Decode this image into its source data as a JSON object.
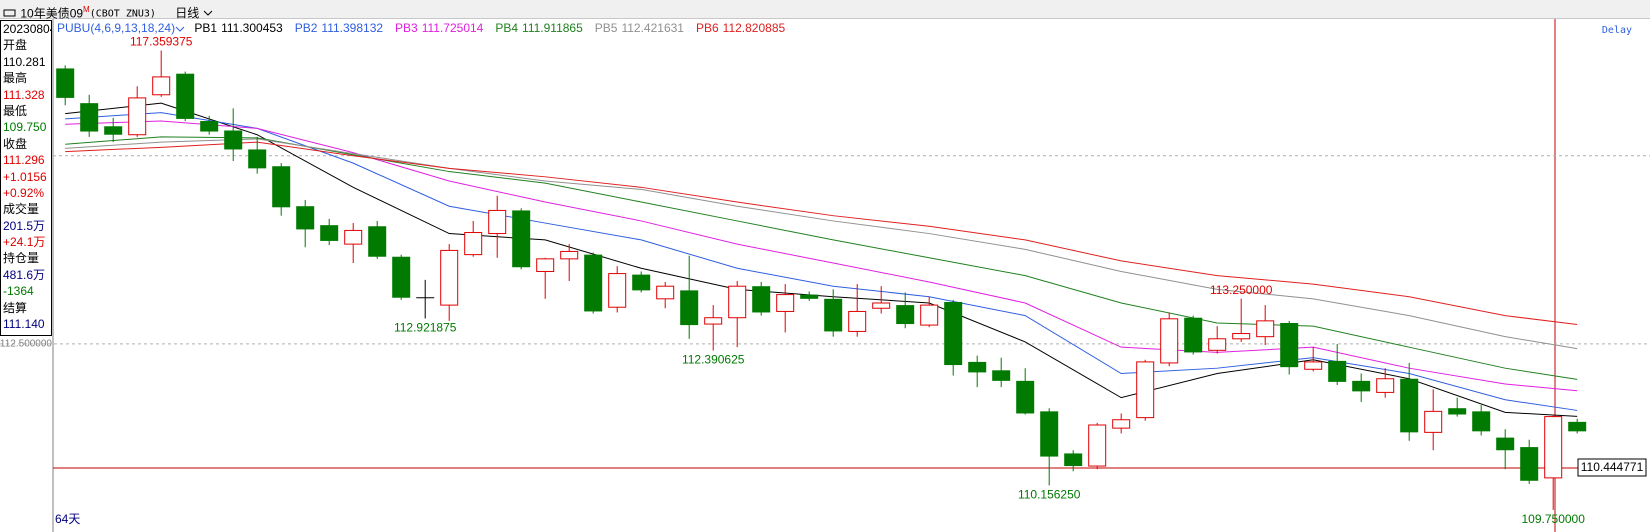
{
  "window": {
    "symbol": "10年美债09",
    "sup": "M",
    "code": "(CBOT ZNU3)",
    "period": "日线"
  },
  "info": [
    {
      "text": "20230804",
      "color": "#000000"
    },
    {
      "text": "开盘",
      "color": "#000000"
    },
    {
      "text": "110.281",
      "color": "#000000"
    },
    {
      "text": "最高",
      "color": "#000000"
    },
    {
      "text": "111.328",
      "color": "#e00000"
    },
    {
      "text": "最低",
      "color": "#000000"
    },
    {
      "text": "109.750",
      "color": "#007a00"
    },
    {
      "text": "收盘",
      "color": "#000000"
    },
    {
      "text": "111.296",
      "color": "#e00000"
    },
    {
      "text": "+1.0156",
      "color": "#e00000"
    },
    {
      "text": "+0.92%",
      "color": "#e00000"
    },
    {
      "text": "成交量",
      "color": "#000000"
    },
    {
      "text": "201.5万",
      "color": "#000080"
    },
    {
      "text": "+24.1万",
      "color": "#e00000"
    },
    {
      "text": "持仓量",
      "color": "#000000"
    },
    {
      "text": "481.6万",
      "color": "#000080"
    },
    {
      "text": "-1364",
      "color": "#007a00"
    },
    {
      "text": "结算",
      "color": "#000000"
    },
    {
      "text": "111.140",
      "color": "#000080"
    }
  ],
  "chart_data": {
    "type": "candlestick",
    "indicator": "PUBU(4,6,9,13,18,24)",
    "delay": "Delay",
    "days": "64天",
    "ylim": [
      109.484,
      117.882
    ],
    "yticks": [
      {
        "value": 112.5,
        "label": "112.500000"
      }
    ],
    "dashed_lines": [
      115.617
    ],
    "up_color": "#e00000",
    "down_color": "#007a00",
    "flat_color": "#000000",
    "price_line": {
      "value": 110.444771,
      "label": "110.444771",
      "color": "#c00000"
    },
    "candles": [
      {
        "open": 117.063,
        "high": 117.115,
        "low": 116.453,
        "close": 116.575
      },
      {
        "open": 116.488,
        "high": 116.627,
        "low": 115.93,
        "close": 116.018
      },
      {
        "open": 116.105,
        "high": 116.244,
        "low": 115.843,
        "close": 115.965
      },
      {
        "open": 115.965,
        "high": 116.767,
        "low": 115.93,
        "close": 116.575
      },
      {
        "open": 116.627,
        "high": 117.359375,
        "low": 116.592,
        "close": 116.923,
        "high_label": "117.359375"
      },
      {
        "open": 116.976,
        "high": 117.011,
        "low": 116.192,
        "close": 116.227
      },
      {
        "open": 116.192,
        "high": 116.279,
        "low": 115.965,
        "close": 116.018
      },
      {
        "open": 116.035,
        "high": 116.401,
        "low": 115.53,
        "close": 115.721
      },
      {
        "open": 115.721,
        "high": 115.93,
        "low": 115.321,
        "close": 115.408
      },
      {
        "open": 115.443,
        "high": 115.495,
        "low": 114.624,
        "close": 114.763
      },
      {
        "open": 114.781,
        "high": 114.885,
        "low": 114.101,
        "close": 114.397
      },
      {
        "open": 114.467,
        "high": 114.571,
        "low": 114.136,
        "close": 114.206
      },
      {
        "open": 114.153,
        "high": 114.502,
        "low": 113.84,
        "close": 114.38
      },
      {
        "open": 114.449,
        "high": 114.537,
        "low": 113.909,
        "close": 113.944
      },
      {
        "open": 113.944,
        "high": 113.979,
        "low": 113.23,
        "close": 113.265
      },
      {
        "open": 113.265,
        "high": 113.561,
        "low": 112.921875,
        "close": 113.265,
        "low_label": "112.921875"
      },
      {
        "open": 113.143,
        "high": 114.153,
        "low": 112.882,
        "close": 114.049
      },
      {
        "open": 113.979,
        "high": 114.537,
        "low": 113.944,
        "close": 114.345
      },
      {
        "open": 114.328,
        "high": 114.955,
        "low": 113.927,
        "close": 114.711
      },
      {
        "open": 114.711,
        "high": 114.746,
        "low": 113.735,
        "close": 113.77
      },
      {
        "open": 113.7,
        "high": 113.927,
        "low": 113.247,
        "close": 113.909
      },
      {
        "open": 113.909,
        "high": 114.153,
        "low": 113.543,
        "close": 114.032
      },
      {
        "open": 113.979,
        "high": 114.014,
        "low": 113.003,
        "close": 113.038
      },
      {
        "open": 113.108,
        "high": 113.788,
        "low": 113.021,
        "close": 113.665
      },
      {
        "open": 113.648,
        "high": 113.7,
        "low": 113.352,
        "close": 113.387
      },
      {
        "open": 113.247,
        "high": 113.526,
        "low": 113.091,
        "close": 113.456
      },
      {
        "open": 113.387,
        "high": 113.962,
        "low": 112.585,
        "close": 112.812
      },
      {
        "open": 112.829,
        "high": 113.143,
        "low": 112.390625,
        "close": 112.934,
        "low_label": "112.390625"
      },
      {
        "open": 112.934,
        "high": 113.543,
        "low": 112.446,
        "close": 113.456
      },
      {
        "open": 113.456,
        "high": 113.526,
        "low": 112.969,
        "close": 113.021
      },
      {
        "open": 113.038,
        "high": 113.491,
        "low": 112.69,
        "close": 113.317
      },
      {
        "open": 113.317,
        "high": 113.369,
        "low": 113.213,
        "close": 113.247
      },
      {
        "open": 113.247,
        "high": 113.404,
        "low": 112.62,
        "close": 112.707
      },
      {
        "open": 112.707,
        "high": 113.491,
        "low": 112.62,
        "close": 113.038
      },
      {
        "open": 113.091,
        "high": 113.456,
        "low": 113.003,
        "close": 113.178
      },
      {
        "open": 113.143,
        "high": 113.352,
        "low": 112.76,
        "close": 112.829
      },
      {
        "open": 112.812,
        "high": 113.282,
        "low": 112.777,
        "close": 113.143
      },
      {
        "open": 113.195,
        "high": 113.23,
        "low": 111.976,
        "close": 112.15
      },
      {
        "open": 112.202,
        "high": 112.307,
        "low": 111.784,
        "close": 112.028
      },
      {
        "open": 112.063,
        "high": 112.272,
        "low": 111.784,
        "close": 111.888
      },
      {
        "open": 111.888,
        "high": 112.098,
        "low": 111.331,
        "close": 111.348
      },
      {
        "open": 111.383,
        "high": 111.435,
        "low": 110.15625,
        "close": 110.634,
        "low_label": "110.156250"
      },
      {
        "open": 110.686,
        "high": 110.739,
        "low": 110.39,
        "close": 110.477
      },
      {
        "open": 110.477,
        "high": 111.192,
        "low": 110.425,
        "close": 111.157
      },
      {
        "open": 111.105,
        "high": 111.348,
        "low": 111.017,
        "close": 111.244
      },
      {
        "open": 111.279,
        "high": 112.237,
        "low": 111.227,
        "close": 112.202
      },
      {
        "open": 112.185,
        "high": 113.021,
        "low": 112.132,
        "close": 112.916
      },
      {
        "open": 112.934,
        "high": 112.969,
        "low": 112.324,
        "close": 112.359
      },
      {
        "open": 112.394,
        "high": 112.794,
        "low": 112.341,
        "close": 112.585
      },
      {
        "open": 112.585,
        "high": 113.25,
        "low": 112.533,
        "close": 112.672,
        "high_label": "113.250000"
      },
      {
        "open": 112.62,
        "high": 113.143,
        "low": 112.481,
        "close": 112.882
      },
      {
        "open": 112.847,
        "high": 112.882,
        "low": 111.993,
        "close": 112.115
      },
      {
        "open": 112.08,
        "high": 112.446,
        "low": 112.045,
        "close": 112.202
      },
      {
        "open": 112.219,
        "high": 112.498,
        "low": 111.819,
        "close": 111.871
      },
      {
        "open": 111.888,
        "high": 112.01,
        "low": 111.54,
        "close": 111.714
      },
      {
        "open": 111.697,
        "high": 112.098,
        "low": 111.61,
        "close": 111.923
      },
      {
        "open": 111.923,
        "high": 112.185,
        "low": 110.895,
        "close": 111.035
      },
      {
        "open": 111.035,
        "high": 111.749,
        "low": 110.739,
        "close": 111.383
      },
      {
        "open": 111.435,
        "high": 111.61,
        "low": 111.296,
        "close": 111.331
      },
      {
        "open": 111.383,
        "high": 111.488,
        "low": 110.983,
        "close": 111.052
      },
      {
        "open": 110.948,
        "high": 111.087,
        "low": 110.425,
        "close": 110.739
      },
      {
        "open": 110.791,
        "high": 110.913,
        "low": 110.181,
        "close": 110.233
      },
      {
        "open": 110.281,
        "high": 111.328,
        "low": 109.75,
        "close": 111.296,
        "low_label": "109.750000"
      },
      {
        "open": 111.209,
        "high": 111.261,
        "low": 111.017,
        "close": 111.052
      }
    ],
    "series": [
      {
        "name": "PB1",
        "color": "#000000",
        "x": [
          0,
          4,
          8,
          12,
          16,
          20,
          24,
          28,
          32,
          36,
          40,
          44,
          48,
          52,
          56,
          60,
          63
        ],
        "values": [
          116.314,
          116.488,
          115.965,
          115.094,
          114.328,
          114.223,
          113.753,
          113.404,
          113.282,
          113.178,
          112.533,
          111.61,
          112.01,
          112.237,
          111.923,
          111.366,
          111.300453
        ]
      },
      {
        "name": "PB2",
        "color": "#2f5fe0",
        "x": [
          0,
          4,
          8,
          12,
          16,
          20,
          24,
          28,
          32,
          36,
          40,
          44,
          48,
          52,
          56,
          60,
          63
        ],
        "values": [
          116.227,
          116.331,
          116.07,
          115.495,
          114.781,
          114.502,
          114.223,
          113.753,
          113.456,
          113.282,
          112.969,
          112.01,
          112.098,
          112.272,
          112.01,
          111.575,
          111.398132
        ]
      },
      {
        "name": "PB3",
        "color": "#e020e0",
        "x": [
          0,
          4,
          8,
          12,
          16,
          20,
          24,
          28,
          32,
          36,
          40,
          44,
          48,
          52,
          56,
          60,
          63
        ],
        "values": [
          116.139,
          116.192,
          116.07,
          115.669,
          115.199,
          114.85,
          114.537,
          114.153,
          113.84,
          113.526,
          113.178,
          112.446,
          112.359,
          112.446,
          112.098,
          111.836,
          111.725014
        ]
      },
      {
        "name": "PB4",
        "color": "#208020",
        "x": [
          0,
          4,
          8,
          12,
          16,
          20,
          24,
          28,
          32,
          36,
          40,
          44,
          48,
          52,
          56,
          60,
          63
        ],
        "values": [
          115.808,
          115.93,
          115.913,
          115.634,
          115.355,
          115.164,
          114.85,
          114.537,
          114.223,
          113.927,
          113.631,
          113.178,
          112.847,
          112.794,
          112.446,
          112.098,
          111.911865
        ]
      },
      {
        "name": "PB5",
        "color": "#909090",
        "x": [
          0,
          4,
          8,
          12,
          16,
          20,
          24,
          28,
          32,
          36,
          40,
          44,
          48,
          52,
          56,
          60,
          63
        ],
        "values": [
          115.739,
          115.843,
          115.896,
          115.652,
          115.408,
          115.199,
          115.059,
          114.781,
          114.537,
          114.328,
          114.066,
          113.7,
          113.404,
          113.247,
          112.969,
          112.62,
          112.421631
        ]
      },
      {
        "name": "PB6",
        "color": "#e02020",
        "x": [
          0,
          4,
          8,
          12,
          16,
          20,
          24,
          28,
          32,
          36,
          40,
          44,
          48,
          52,
          56,
          60,
          63
        ],
        "values": [
          115.686,
          115.756,
          115.843,
          115.617,
          115.408,
          115.268,
          115.094,
          114.85,
          114.624,
          114.449,
          114.223,
          113.875,
          113.631,
          113.491,
          113.282,
          112.969,
          112.820885
        ]
      }
    ]
  }
}
